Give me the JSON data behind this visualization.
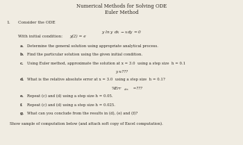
{
  "title1": "Numerical Methods for Solving ODE",
  "title2": "Euler Method",
  "bg_color": "#f0ece2",
  "text_color": "#2a2520",
  "footer": "Show sample of computation below (and attach soft copy of Excel computation)."
}
